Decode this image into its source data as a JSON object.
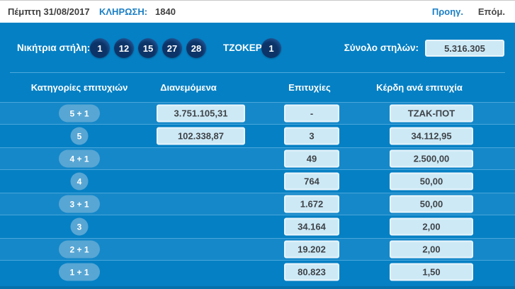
{
  "colors": {
    "body_blue": "#0580c4",
    "highlight_row": "#1588c9",
    "link_blue": "#1b7fc4",
    "box_bg": "#cde9f6",
    "ball_dark": "#0c3468",
    "ball_light": "#2a61a6",
    "badge_bg": "#58a6d4"
  },
  "topbar": {
    "date": "Πέμπτη 31/08/2017",
    "draw_label": "ΚΛΗΡΩΣΗ:",
    "draw_number": "1840",
    "prev_label": "Προηγ.",
    "next_label": "Επόμ."
  },
  "draw": {
    "winning_label": "Νικήτρια στήλη:",
    "numbers": [
      "1",
      "12",
      "15",
      "27",
      "28"
    ],
    "joker_label": "ΤΖΟΚΕΡ:",
    "joker_number": "1",
    "total_label": "Σύνολο στηλών:",
    "total_value": "5.316.305"
  },
  "table": {
    "headers": {
      "category": "Κατηγορίες επιτυχιών",
      "distributed": "Διανεμόμενα",
      "winners": "Επιτυχίες",
      "prize": "Κέρδη ανά επιτυχία"
    },
    "rows": [
      {
        "category": "5 + 1",
        "distributed": "3.751.105,31",
        "winners": "-",
        "prize": "ΤΖΑΚ-ΠΟΤ",
        "highlight": true
      },
      {
        "category": "5",
        "distributed": "102.338,87",
        "winners": "3",
        "prize": "34.112,95",
        "highlight": false
      },
      {
        "category": "4 + 1",
        "distributed": "",
        "winners": "49",
        "prize": "2.500,00",
        "highlight": true
      },
      {
        "category": "4",
        "distributed": "",
        "winners": "764",
        "prize": "50,00",
        "highlight": false
      },
      {
        "category": "3 + 1",
        "distributed": "",
        "winners": "1.672",
        "prize": "50,00",
        "highlight": true
      },
      {
        "category": "3",
        "distributed": "",
        "winners": "34.164",
        "prize": "2,00",
        "highlight": false
      },
      {
        "category": "2 + 1",
        "distributed": "",
        "winners": "19.202",
        "prize": "2,00",
        "highlight": true
      },
      {
        "category": "1 + 1",
        "distributed": "",
        "winners": "80.823",
        "prize": "1,50",
        "highlight": false
      }
    ]
  }
}
